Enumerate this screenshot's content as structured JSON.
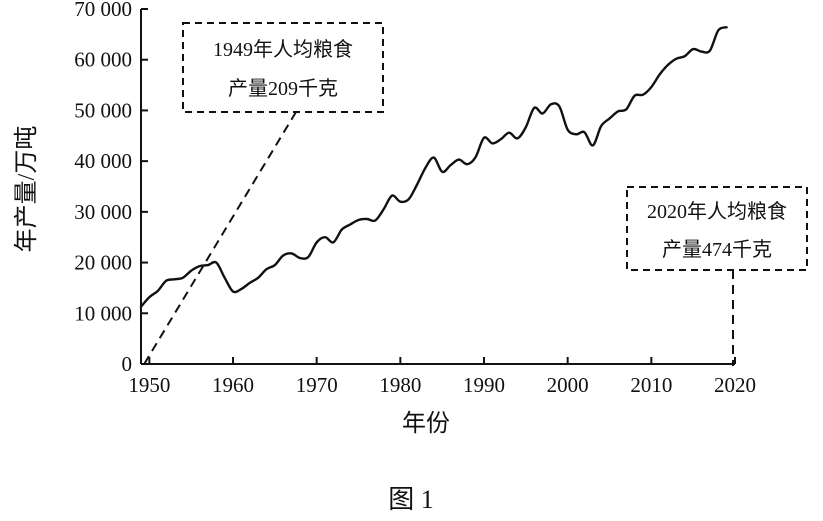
{
  "chart_data": {
    "type": "line",
    "xlabel": "年份",
    "ylabel": "年产量/万吨",
    "xlim": [
      1949,
      2020
    ],
    "ylim": [
      0,
      70000
    ],
    "xticks": [
      "1950",
      "1960",
      "1970",
      "1980",
      "1990",
      "2000",
      "2010",
      "2020"
    ],
    "yticks": [
      "0",
      "10 000",
      "20 000",
      "30 000",
      "40 000",
      "50 000",
      "60 000",
      "70 000"
    ],
    "grid": false,
    "series": [
      {
        "x": [
          1949,
          1950,
          1951,
          1952,
          1953,
          1954,
          1955,
          1956,
          1957,
          1958,
          1959,
          1960,
          1961,
          1962,
          1963,
          1964,
          1965,
          1966,
          1967,
          1968,
          1969,
          1970,
          1971,
          1972,
          1973,
          1974,
          1975,
          1976,
          1977,
          1978,
          1979,
          1980,
          1981,
          1982,
          1983,
          1984,
          1985,
          1986,
          1987,
          1988,
          1989,
          1990,
          1991,
          1992,
          1993,
          1994,
          1995,
          1996,
          1997,
          1998,
          1999,
          2000,
          2001,
          2002,
          2003,
          2004,
          2005,
          2006,
          2007,
          2008,
          2009,
          2010,
          2011,
          2012,
          2013,
          2014,
          2015,
          2016,
          2017,
          2018,
          2019
        ],
        "y": [
          11300,
          13200,
          14400,
          16400,
          16700,
          17000,
          18400,
          19300,
          19500,
          20000,
          17000,
          14300,
          14800,
          16000,
          17000,
          18700,
          19500,
          21400,
          21800,
          20900,
          21100,
          24000,
          25000,
          24000,
          26500,
          27500,
          28400,
          28600,
          28300,
          30500,
          33200,
          32000,
          32500,
          35400,
          38700,
          40700,
          37900,
          39200,
          40300,
          39400,
          40800,
          44600,
          43500,
          44300,
          45600,
          44500,
          46700,
          50500,
          49400,
          51200,
          50800,
          46200,
          45300,
          45700,
          43100,
          46900,
          48400,
          49800,
          50200,
          52900,
          53100,
          54600,
          57100,
          59000,
          60200,
          60700,
          62100,
          61600,
          61800,
          65800,
          66400
        ]
      }
    ],
    "annotations": [
      {
        "line1": "1949年人均粮食",
        "line2": "产量209千克"
      },
      {
        "line1": "2020年人均粮食",
        "line2": "产量474千克"
      }
    ]
  },
  "figure": {
    "caption": "图 1"
  }
}
